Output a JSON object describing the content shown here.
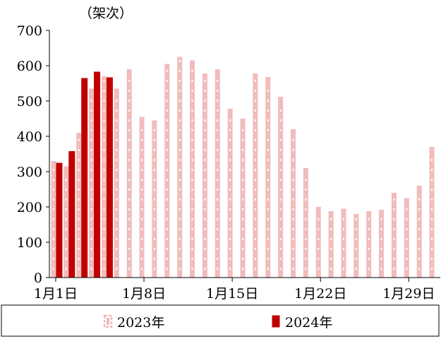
{
  "chart_data": {
    "type": "bar",
    "title": "",
    "unit_label": "（架次）",
    "xlabel": "",
    "ylabel": "",
    "ylim": [
      0,
      700
    ],
    "yticks": [
      0,
      100,
      200,
      300,
      400,
      500,
      600,
      700
    ],
    "xticks": [
      {
        "label": "1月1日",
        "day": 1
      },
      {
        "label": "1月8日",
        "day": 8
      },
      {
        "label": "1月15日",
        "day": 15
      },
      {
        "label": "1月22日",
        "day": 22
      },
      {
        "label": "1月29日",
        "day": 29
      }
    ],
    "days": [
      1,
      2,
      3,
      4,
      5,
      6,
      7,
      8,
      9,
      10,
      11,
      12,
      13,
      14,
      15,
      16,
      17,
      18,
      19,
      20,
      21,
      22,
      23,
      24,
      25,
      26,
      27,
      28,
      29,
      30,
      31
    ],
    "grid": false,
    "legend_position": "bottom",
    "series": [
      {
        "name": "2023年",
        "style": "dashed",
        "color": "#f0b8b8",
        "values": [
          330,
          315,
          410,
          535,
          570,
          535,
          590,
          455,
          445,
          605,
          625,
          615,
          578,
          590,
          478,
          450,
          578,
          568,
          512,
          420,
          310,
          200,
          188,
          195,
          180,
          188,
          192,
          240,
          225,
          260,
          370
        ]
      },
      {
        "name": "2024年",
        "style": "solid",
        "color": "#c00000",
        "values": [
          325,
          358,
          565,
          583,
          567
        ]
      }
    ]
  }
}
